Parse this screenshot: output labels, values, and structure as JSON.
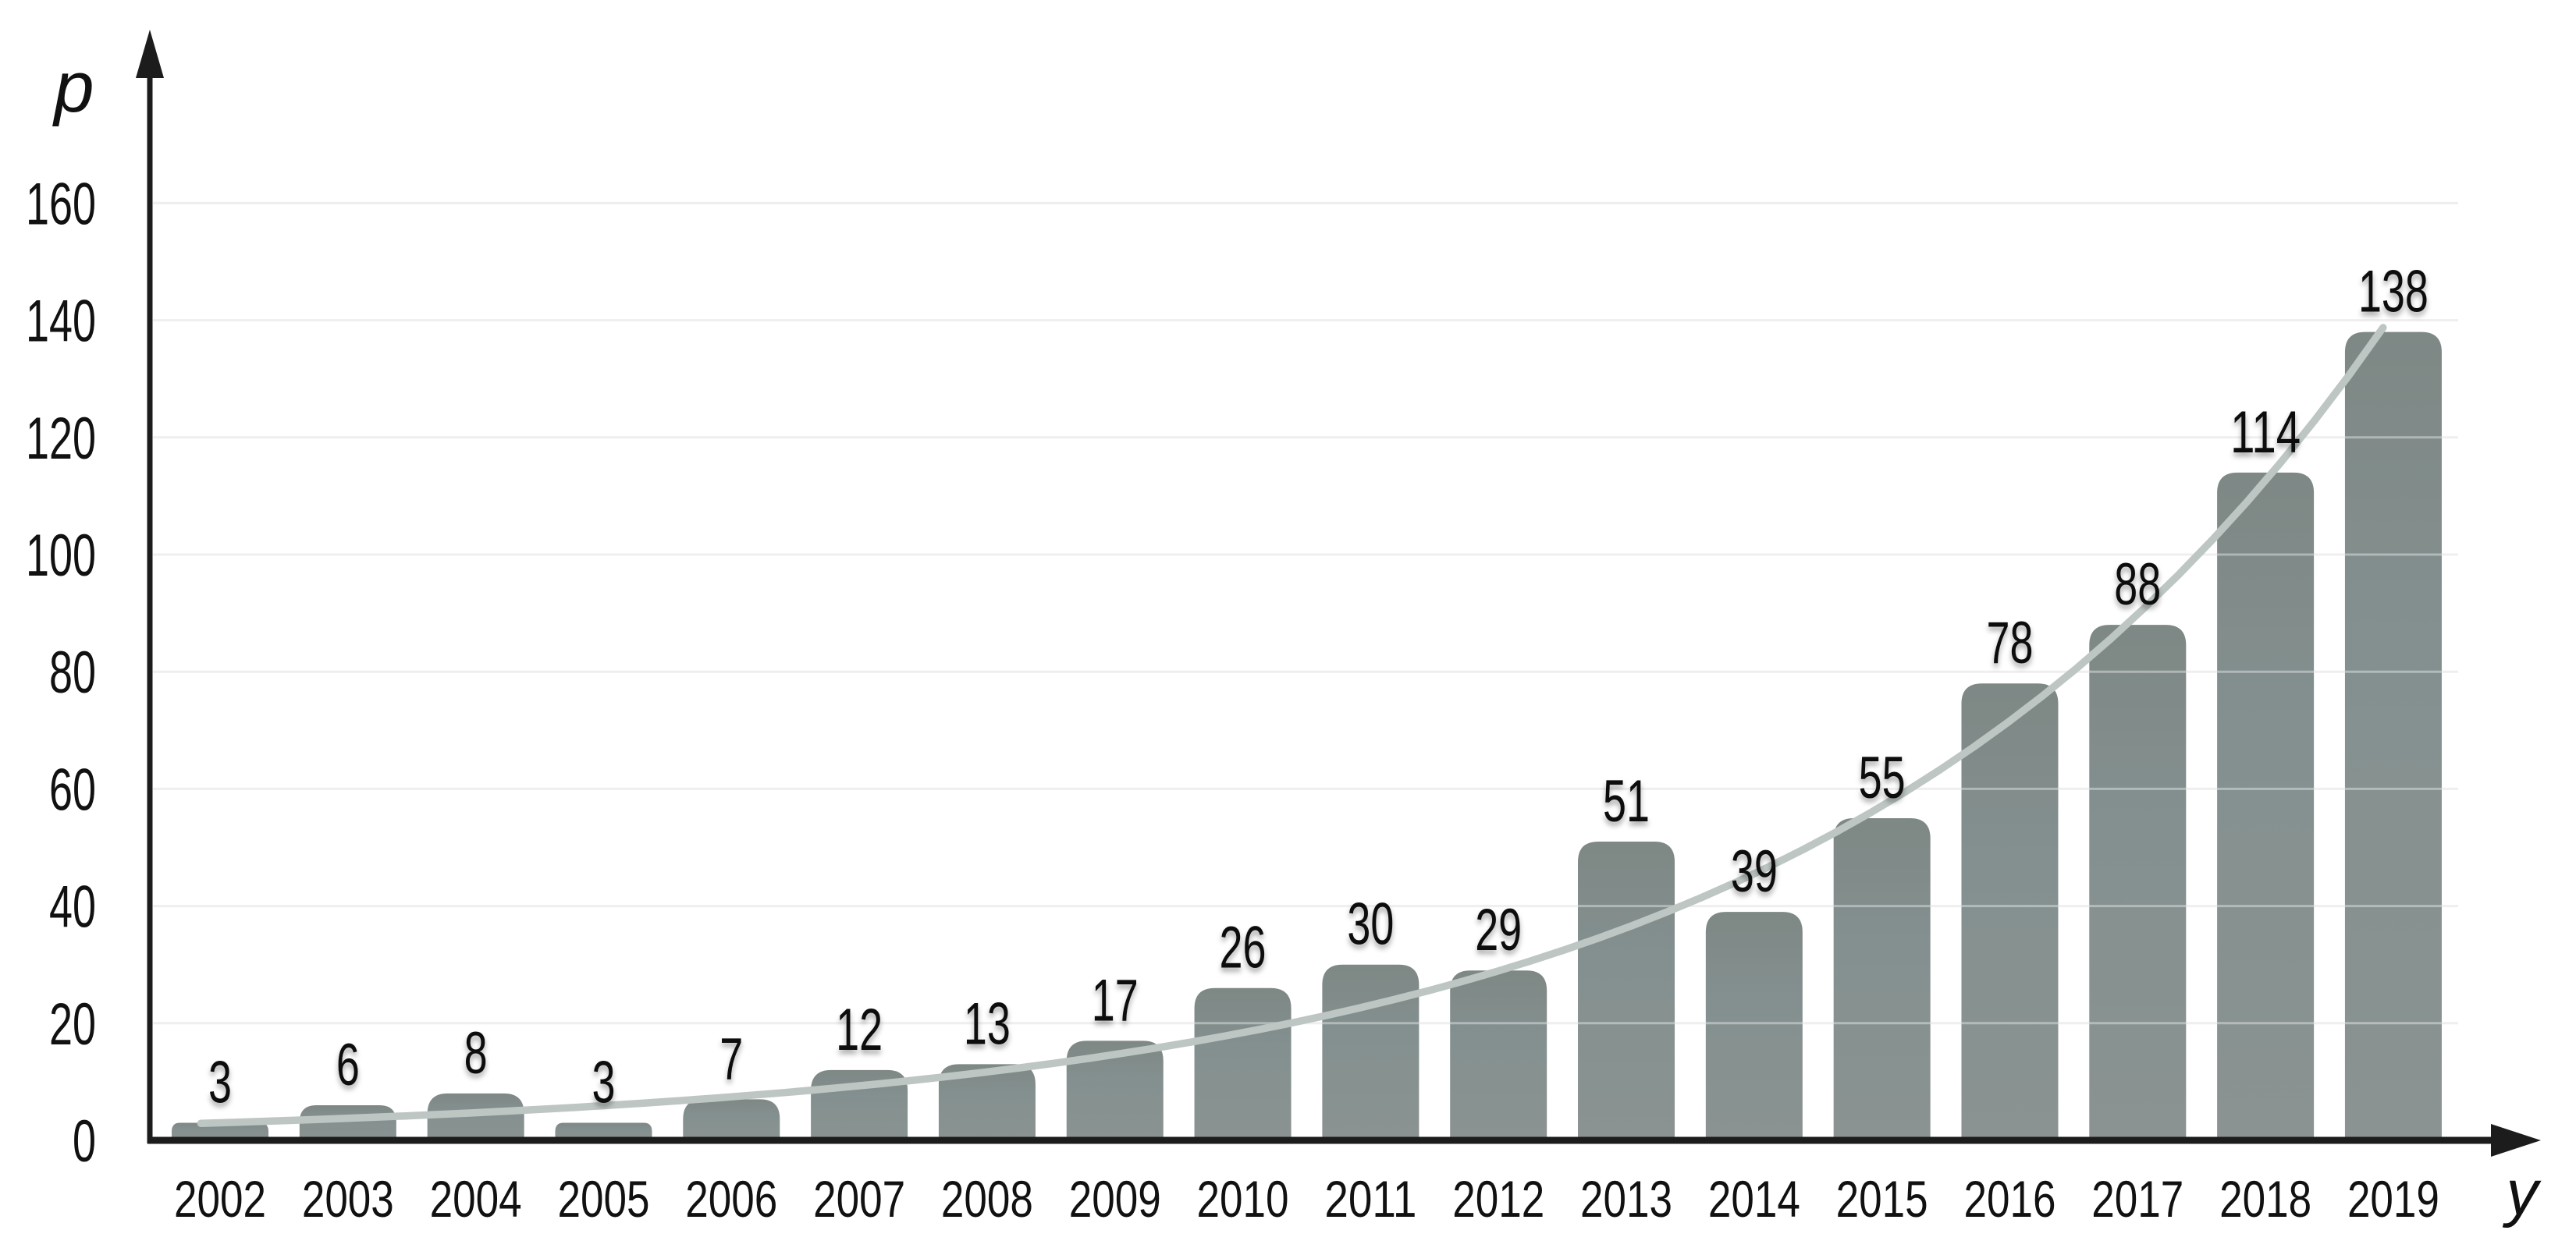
{
  "chart_data": {
    "type": "bar",
    "title": "",
    "xlabel": "y",
    "ylabel": "p",
    "categories": [
      "2002",
      "2003",
      "2004",
      "2005",
      "2006",
      "2007",
      "2008",
      "2009",
      "2010",
      "2011",
      "2012",
      "2013",
      "2014",
      "2015",
      "2016",
      "2017",
      "2018",
      "2019"
    ],
    "values": [
      3,
      6,
      8,
      3,
      7,
      12,
      13,
      17,
      26,
      30,
      29,
      51,
      39,
      55,
      78,
      88,
      114,
      138
    ],
    "bar_labels": [
      "3",
      "6",
      "8",
      "3",
      "7",
      "12",
      "13",
      "17",
      "26",
      "30",
      "29",
      "51",
      "39",
      "55",
      "78",
      "88",
      "114",
      "138"
    ],
    "yticks": [
      0,
      20,
      40,
      60,
      80,
      100,
      120,
      140,
      160
    ],
    "ylim": [
      0,
      175
    ],
    "grid": "horizontal",
    "legend_position": "none",
    "trend": {
      "type": "exponential",
      "description": "smooth exponential trend curve overlaid on bars",
      "values_at_years": [
        3.0,
        3.8,
        4.7,
        5.9,
        7.4,
        9.3,
        11.7,
        14.6,
        18.4,
        23.0,
        28.9,
        36.3,
        45.5,
        57.1,
        71.7,
        90.0,
        112.9,
        141.7
      ],
      "a": 3.0,
      "b": 0.2266
    },
    "colors": {
      "bar_fill": "#859090",
      "bar_fill_top": "#7d8784",
      "trend_line": "#bdc6c3",
      "gridline": "#e6e6e6",
      "axis": "#1c1c1c",
      "label_text": "#111111",
      "background": "#ffffff"
    }
  }
}
